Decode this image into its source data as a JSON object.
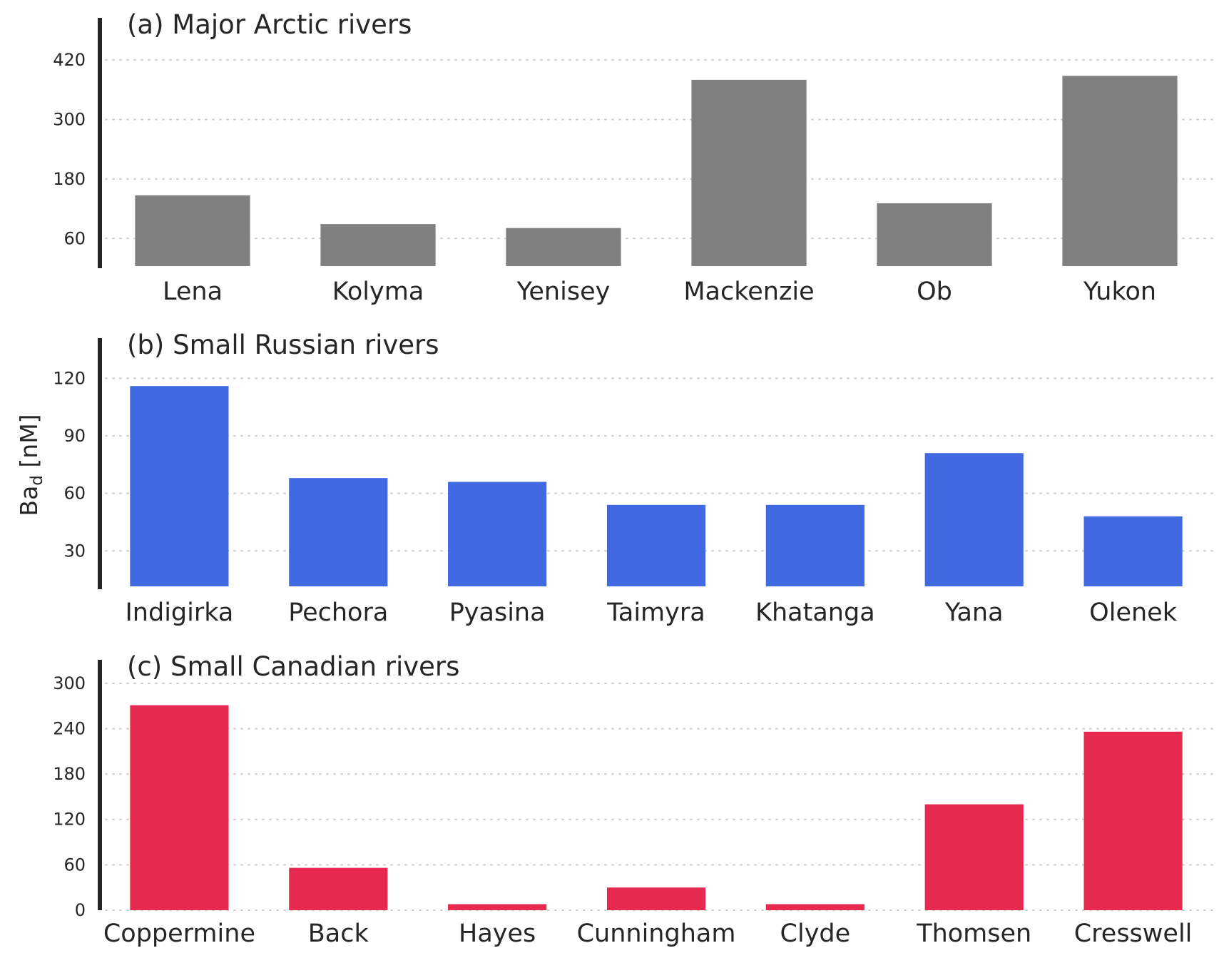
{
  "chart_data": [
    {
      "type": "bar",
      "title": "(a) Major Arctic rivers",
      "categories": [
        "Lena",
        "Kolyma",
        "Yenisey",
        "Mackenzie",
        "Ob",
        "Yukon"
      ],
      "values": [
        147,
        89,
        81,
        380,
        131,
        388
      ],
      "color": "#808080",
      "yticks": [
        60,
        180,
        300,
        420
      ],
      "ylim": [
        0,
        505
      ],
      "grid": true
    },
    {
      "type": "bar",
      "title": "(b) Small Russian rivers",
      "categories": [
        "Indigirka",
        "Pechora",
        "Pyasina",
        "Taimyra",
        "Khatanga",
        "Yana",
        "Olenek"
      ],
      "values": [
        116,
        68,
        66,
        54,
        54,
        81,
        48
      ],
      "color": "#4169e1",
      "yticks": [
        30,
        60,
        90,
        120
      ],
      "ylim": [
        10,
        141
      ],
      "grid": true
    },
    {
      "type": "bar",
      "title": "(c) Small Canadian rivers",
      "categories": [
        "Coppermine",
        "Back",
        "Hayes",
        "Cunningham",
        "Clyde",
        "Thomsen",
        "Cresswell"
      ],
      "values": [
        271,
        56,
        8,
        30,
        8,
        140,
        236
      ],
      "color": "#e62a50",
      "yticks": [
        0,
        60,
        120,
        180,
        240,
        300
      ],
      "ylim": [
        0,
        331
      ],
      "grid": true
    }
  ],
  "ylabel": {
    "main": "Ba",
    "sub": "d",
    "unit": " [nM]"
  }
}
